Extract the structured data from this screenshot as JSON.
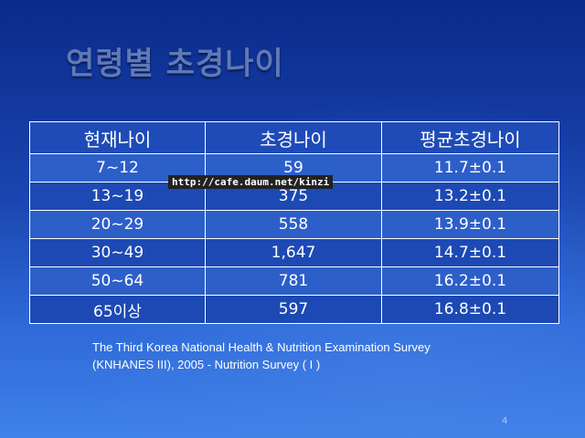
{
  "slide": {
    "title": "연령별 초경나이",
    "page_number": "4"
  },
  "table": {
    "headers": [
      "현재나이",
      "초경나이",
      "평균초경나이"
    ],
    "rows": [
      [
        "7~12",
        "59",
        "11.7±0.1"
      ],
      [
        "13~19",
        "375",
        "13.2±0.1"
      ],
      [
        "20~29",
        "558",
        "13.9±0.1"
      ],
      [
        "30~49",
        "1,647",
        "14.7±0.1"
      ],
      [
        "50~64",
        "781",
        "16.2±0.1"
      ],
      [
        "65이상",
        "597",
        "16.8±0.1"
      ]
    ]
  },
  "watermark": {
    "text": "http://cafe.daum.net/kinzi"
  },
  "source": {
    "line1": "The Third Korea National Health & Nutrition Examination Survey",
    "line2": "(KNHANES  III), 2005 - Nutrition Survey ( I )"
  },
  "colors": {
    "background_top": "#0a2a8a",
    "background_bottom": "#3f82ea",
    "title": "#5f79b6",
    "table_header": "#1e4bb8",
    "table_row_light": "#2d5fc9",
    "table_row_dark": "#1c49b4"
  }
}
